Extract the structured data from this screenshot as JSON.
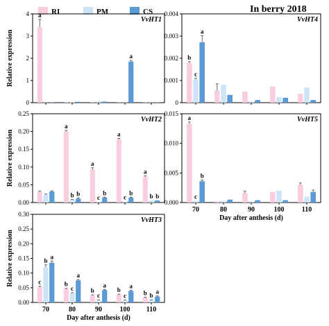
{
  "figure": {
    "heading": "In berry 2018"
  },
  "legend": {
    "items": [
      {
        "label": "RI",
        "color": "#f9cde0"
      },
      {
        "label": "PM",
        "color": "#cde4f7"
      },
      {
        "label": "CS",
        "color": "#5b9bd5"
      }
    ]
  },
  "chart_data": [
    {
      "id": "VvHT1",
      "type": "bar",
      "title": "VvHT1",
      "ylabel": "Relative expression",
      "xlabel": "",
      "categories": [
        "70",
        "80",
        "90",
        "100",
        "110"
      ],
      "ylim": [
        0,
        4
      ],
      "yticks": [
        0,
        1,
        2,
        3,
        4
      ],
      "show_x_ticklabels": false,
      "series": [
        {
          "name": "RI",
          "values": [
            3.4,
            0.01,
            0.01,
            0.01,
            0.01
          ],
          "errors": [
            0.35,
            0,
            0,
            0,
            0
          ]
        },
        {
          "name": "PM",
          "values": [
            0.01,
            0.02,
            0.07,
            0.01,
            0.01
          ],
          "errors": [
            0,
            0,
            0,
            0,
            0
          ]
        },
        {
          "name": "CS",
          "values": [
            0.01,
            0.04,
            0.05,
            1.85,
            0.01
          ],
          "errors": [
            0,
            0,
            0,
            0.05,
            0
          ]
        }
      ],
      "annotations": [
        {
          "category": "70",
          "series": "RI",
          "text": "a"
        },
        {
          "category": "100",
          "series": "CS",
          "text": "a"
        }
      ]
    },
    {
      "id": "VvHT4",
      "type": "bar",
      "title": "VvHT4",
      "ylabel": "",
      "xlabel": "",
      "categories": [
        "70",
        "80",
        "90",
        "100",
        "110"
      ],
      "ylim": [
        0,
        0.004
      ],
      "yticks": [
        0,
        0.001,
        0.002,
        0.003,
        0.004
      ],
      "show_x_ticklabels": false,
      "series": [
        {
          "name": "RI",
          "values": [
            0.0018,
            0.00055,
            0.0005,
            0.00073,
            0.0004
          ],
          "errors": [
            5e-05,
            0.0003,
            0,
            0,
            0
          ]
        },
        {
          "name": "PM",
          "values": [
            0.00105,
            0.0008,
            5e-05,
            0.00025,
            0.00068
          ],
          "errors": [
            5e-05,
            0,
            0,
            0,
            0
          ]
        },
        {
          "name": "CS",
          "values": [
            0.00272,
            0.00035,
            0.00012,
            0.00022,
            0.00012
          ],
          "errors": [
            0.0003,
            0,
            0,
            0,
            0
          ]
        }
      ],
      "annotations": [
        {
          "category": "70",
          "series": "RI",
          "text": "b"
        },
        {
          "category": "70",
          "series": "PM",
          "text": "c"
        },
        {
          "category": "70",
          "series": "CS",
          "text": "a"
        }
      ]
    },
    {
      "id": "VvHT2",
      "type": "bar",
      "title": "VvHT2",
      "ylabel": "Relative expression",
      "xlabel": "",
      "categories": [
        "70",
        "80",
        "90",
        "100",
        "110"
      ],
      "ylim": [
        0,
        0.25
      ],
      "yticks": [
        0,
        0.05,
        0.1,
        0.15,
        0.2,
        0.25
      ],
      "show_x_ticklabels": false,
      "series": [
        {
          "name": "RI",
          "values": [
            0.03,
            0.2,
            0.093,
            0.178,
            0.072
          ],
          "errors": [
            0.002,
            0.003,
            0.005,
            0.003,
            0.003
          ]
        },
        {
          "name": "PM",
          "values": [
            0.022,
            0.008,
            0.002,
            0.003,
            0.006
          ],
          "errors": [
            0.002,
            0.001,
            0,
            0,
            0
          ]
        },
        {
          "name": "CS",
          "values": [
            0.031,
            0.011,
            0.014,
            0.014,
            0.006
          ],
          "errors": [
            0.002,
            0.002,
            0.001,
            0.001,
            0
          ]
        }
      ],
      "annotations": [
        {
          "category": "80",
          "series": "RI",
          "text": "a"
        },
        {
          "category": "80",
          "series": "PM",
          "text": "b"
        },
        {
          "category": "80",
          "series": "CS",
          "text": "b"
        },
        {
          "category": "90",
          "series": "RI",
          "text": "a"
        },
        {
          "category": "90",
          "series": "PM",
          "text": "c"
        },
        {
          "category": "90",
          "series": "CS",
          "text": "b"
        },
        {
          "category": "100",
          "series": "RI",
          "text": "a"
        },
        {
          "category": "100",
          "series": "PM",
          "text": "c"
        },
        {
          "category": "100",
          "series": "CS",
          "text": "b"
        },
        {
          "category": "110",
          "series": "RI",
          "text": "a"
        },
        {
          "category": "110",
          "series": "PM",
          "text": "b"
        },
        {
          "category": "110",
          "series": "CS",
          "text": "b"
        }
      ]
    },
    {
      "id": "VvHT5",
      "type": "bar",
      "title": "VvHT5",
      "ylabel": "",
      "xlabel": "Day after anthesis (d)",
      "categories": [
        "70",
        "80",
        "90",
        "100",
        "110"
      ],
      "ylim": [
        0,
        0.015
      ],
      "yticks": [
        0,
        0.005,
        0.01,
        0.015
      ],
      "show_x_ticklabels": true,
      "series": [
        {
          "name": "RI",
          "values": [
            0.0133,
            0.0002,
            0.0016,
            0.0018,
            0.003
          ],
          "errors": [
            0.0003,
            0,
            0.0003,
            0,
            0.0003
          ]
        },
        {
          "name": "PM",
          "values": [
            0.0003,
            0.0003,
            0.0002,
            0.002,
            0.001
          ],
          "errors": [
            0,
            0,
            0,
            0,
            0
          ]
        },
        {
          "name": "CS",
          "values": [
            0.0036,
            0.0005,
            0.0004,
            0.0004,
            0.0018
          ],
          "errors": [
            0.0002,
            0,
            0,
            0,
            0.0003
          ]
        }
      ],
      "annotations": [
        {
          "category": "70",
          "series": "RI",
          "text": "a"
        },
        {
          "category": "70",
          "series": "PM",
          "text": "c"
        },
        {
          "category": "70",
          "series": "CS",
          "text": "b"
        }
      ]
    },
    {
      "id": "VvHT3",
      "type": "bar",
      "title": "VvHT3",
      "ylabel": "Relative expression",
      "xlabel": "Day after anthesis (d)",
      "categories": [
        "70",
        "80",
        "90",
        "100",
        "110"
      ],
      "ylim": [
        0,
        0.3
      ],
      "yticks": [
        0,
        0.05,
        0.1,
        0.15,
        0.2,
        0.25,
        0.3
      ],
      "show_x_ticklabels": true,
      "series": [
        {
          "name": "RI",
          "values": [
            0.052,
            0.046,
            0.024,
            0.026,
            0.016
          ],
          "errors": [
            0.003,
            0.002,
            0.002,
            0.002,
            0.002
          ]
        },
        {
          "name": "PM",
          "values": [
            0.12,
            0.031,
            0.008,
            0.007,
            0.008
          ],
          "errors": [
            0.008,
            0.002,
            0.001,
            0.001,
            0.001
          ]
        },
        {
          "name": "CS",
          "values": [
            0.135,
            0.075,
            0.042,
            0.039,
            0.02
          ],
          "errors": [
            0.006,
            0.003,
            0.002,
            0.002,
            0.002
          ]
        }
      ],
      "annotations": [
        {
          "category": "70",
          "series": "RI",
          "text": "c"
        },
        {
          "category": "70",
          "series": "PM",
          "text": "b"
        },
        {
          "category": "70",
          "series": "CS",
          "text": "a"
        },
        {
          "category": "80",
          "series": "RI",
          "text": "b"
        },
        {
          "category": "80",
          "series": "PM",
          "text": "c"
        },
        {
          "category": "80",
          "series": "CS",
          "text": "a"
        },
        {
          "category": "90",
          "series": "RI",
          "text": "b"
        },
        {
          "category": "90",
          "series": "PM",
          "text": "c"
        },
        {
          "category": "90",
          "series": "CS",
          "text": "a"
        },
        {
          "category": "100",
          "series": "RI",
          "text": "b"
        },
        {
          "category": "100",
          "series": "PM",
          "text": "c"
        },
        {
          "category": "100",
          "series": "CS",
          "text": "a"
        },
        {
          "category": "110",
          "series": "RI",
          "text": "b"
        },
        {
          "category": "110",
          "series": "PM",
          "text": "b"
        },
        {
          "category": "110",
          "series": "CS",
          "text": "a"
        }
      ]
    }
  ]
}
